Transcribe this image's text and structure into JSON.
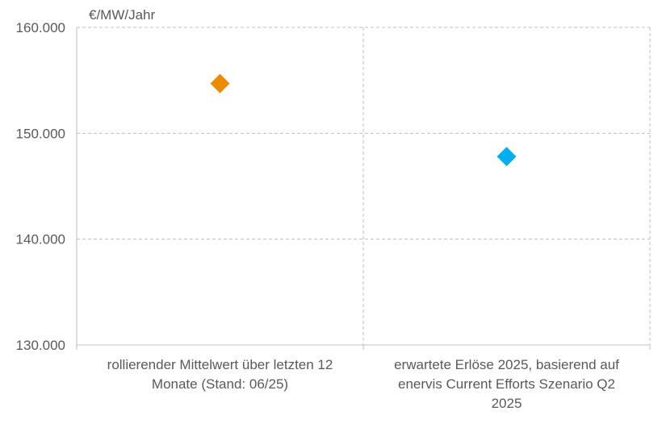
{
  "chart_data": {
    "type": "scatter",
    "ylabel": "€/MW/Jahr",
    "ylim": [
      130000,
      160000
    ],
    "y_ticks": [
      160000,
      150000,
      140000,
      130000
    ],
    "y_tick_labels": [
      "160.000",
      "150.000",
      "140.000",
      "130.000"
    ],
    "grid": true,
    "categories": [
      {
        "lines": [
          "rollierender Mittelwert über letzten 12",
          "Monate (Stand: 06/25)"
        ]
      },
      {
        "lines": [
          "erwartete Erlöse 2025, basierend auf",
          "enervis Current Efforts Szenario Q2",
          "2025"
        ]
      }
    ],
    "points": [
      {
        "category_index": 0,
        "value": 154700,
        "color": "#ED8B00",
        "marker": "diamond"
      },
      {
        "category_index": 1,
        "value": 147800,
        "color": "#00AEEF",
        "marker": "diamond"
      }
    ]
  }
}
